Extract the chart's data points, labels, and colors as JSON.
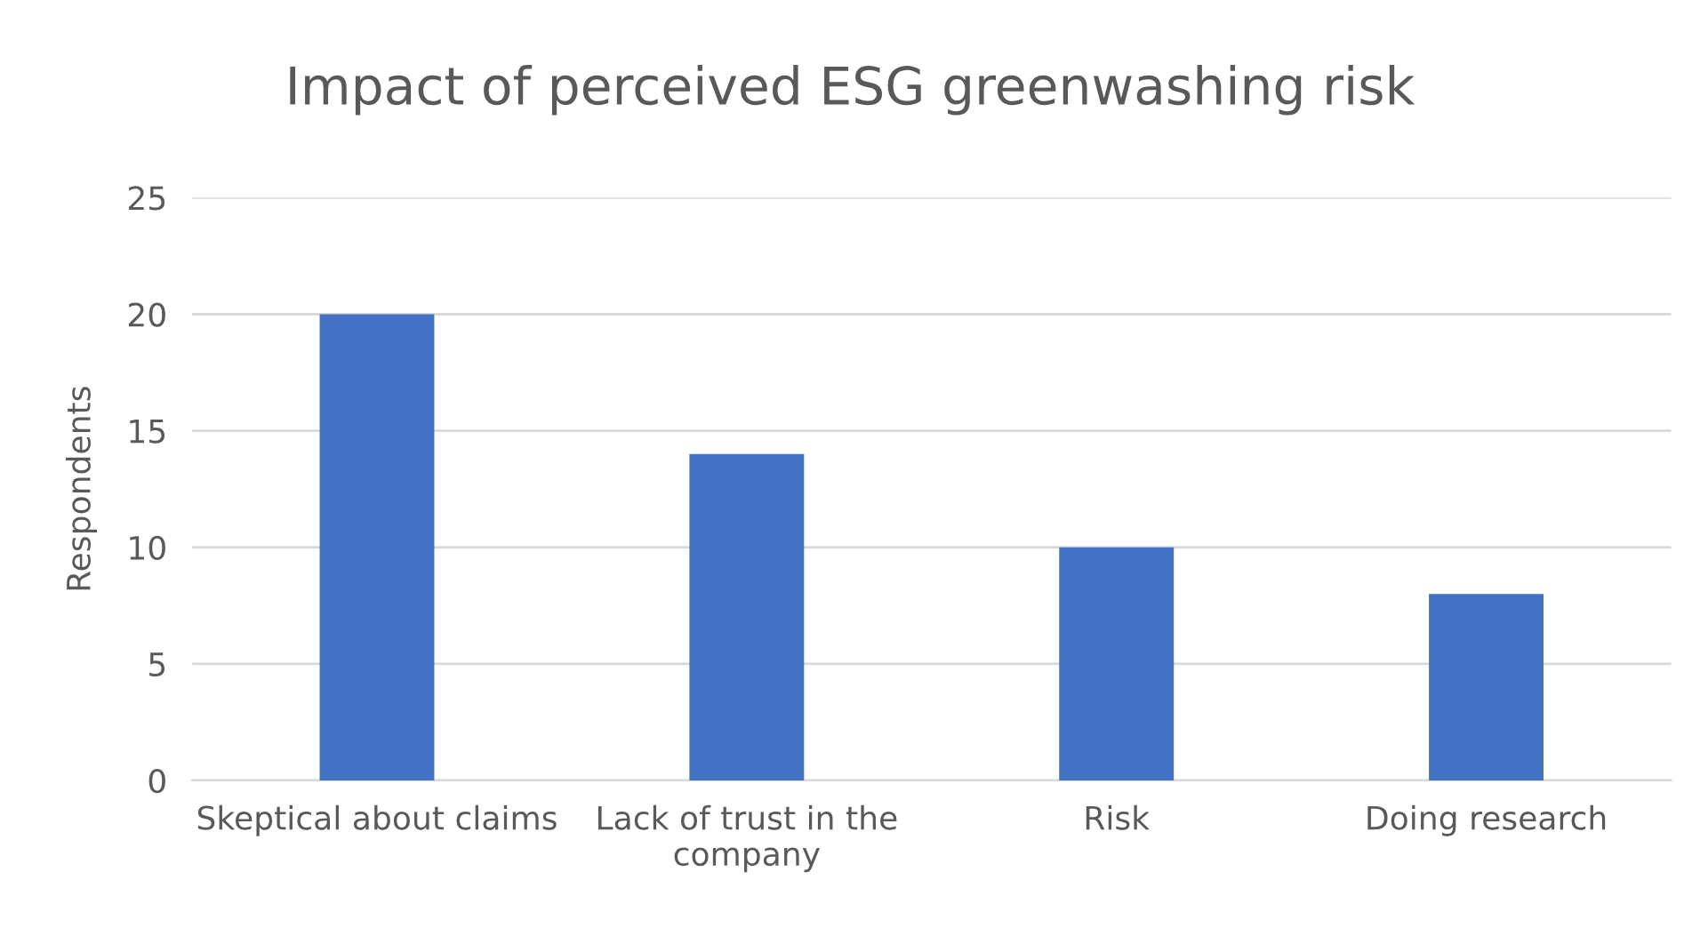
{
  "chart_data": {
    "type": "bar",
    "title": "Impact of perceived ESG greenwashing risk",
    "ylabel": "Respondents",
    "categories": [
      "Skeptical about claims",
      "Lack of trust in the company",
      "Risk",
      "Doing research"
    ],
    "values": [
      20,
      14,
      10,
      8
    ],
    "color": "#4472c4",
    "ylim": [
      0,
      25
    ],
    "yticks": [
      0,
      5,
      10,
      15,
      20,
      25
    ],
    "grid": "y"
  }
}
